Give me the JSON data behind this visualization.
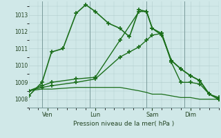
{
  "background_color": "#d0e8e8",
  "grid_color": "#b0cccc",
  "line_color": "#1a6e1a",
  "xlabel": "Pression niveau de la mer( hPa )",
  "ylim": [
    1007.5,
    1013.8
  ],
  "yticks": [
    1008,
    1009,
    1010,
    1011,
    1012,
    1013
  ],
  "xlim": [
    0.0,
    10.0
  ],
  "day_ticks": [
    1.0,
    3.5,
    6.5,
    8.5
  ],
  "day_labels": [
    "Ven",
    "Lun",
    "Sam",
    "Dim"
  ],
  "day_lines": [
    0.7,
    3.2,
    6.2,
    8.2
  ],
  "series": [
    {
      "x": [
        0.0,
        0.7,
        1.2,
        1.8,
        2.5,
        3.0,
        3.5,
        4.2,
        4.8,
        5.3,
        5.8,
        6.2,
        6.5,
        7.0,
        7.5,
        8.0,
        8.5,
        9.0,
        9.5,
        10.0
      ],
      "y": [
        1008.2,
        1009.0,
        1010.8,
        1011.0,
        1013.1,
        1013.6,
        1013.2,
        1012.5,
        1012.2,
        1011.7,
        1013.3,
        1013.2,
        1012.2,
        1011.8,
        1010.3,
        1009.8,
        1009.4,
        1009.1,
        1008.3,
        1008.0
      ],
      "linestyle": "-",
      "linewidth": 1.2,
      "marker": "+",
      "markersize": 5
    },
    {
      "x": [
        0.0,
        0.7,
        1.2,
        2.5,
        3.5,
        4.8,
        5.8,
        6.2,
        6.5,
        7.0,
        7.5,
        8.0,
        8.5,
        9.0,
        9.5,
        10.0
      ],
      "y": [
        1008.5,
        1008.8,
        1009.0,
        1009.2,
        1009.3,
        1011.5,
        1013.2,
        1013.2,
        1012.2,
        1011.9,
        1010.3,
        1009.8,
        1009.4,
        1009.1,
        1008.3,
        1008.1
      ],
      "linestyle": "-",
      "linewidth": 1.0,
      "marker": "+",
      "markersize": 4
    },
    {
      "x": [
        0.0,
        0.7,
        1.2,
        2.5,
        3.5,
        4.8,
        5.3,
        5.8,
        6.2,
        6.5,
        7.0,
        7.5,
        8.0,
        8.5,
        9.0,
        9.5,
        10.0
      ],
      "y": [
        1008.5,
        1008.7,
        1008.8,
        1009.0,
        1009.2,
        1010.5,
        1010.8,
        1011.1,
        1011.5,
        1011.8,
        1011.9,
        1010.2,
        1009.0,
        1009.0,
        1008.9,
        1008.3,
        1008.0
      ],
      "linestyle": "-",
      "linewidth": 1.0,
      "marker": "+",
      "markersize": 4
    },
    {
      "x": [
        0.0,
        0.7,
        1.2,
        2.5,
        3.5,
        4.8,
        5.3,
        5.8,
        6.2,
        6.5,
        7.0,
        7.5,
        8.0,
        8.5,
        9.0,
        9.5,
        10.0
      ],
      "y": [
        1008.5,
        1008.6,
        1008.6,
        1008.7,
        1008.7,
        1008.7,
        1008.6,
        1008.5,
        1008.4,
        1008.3,
        1008.3,
        1008.2,
        1008.1,
        1008.1,
        1008.0,
        1008.0,
        1008.0
      ],
      "linestyle": "-",
      "linewidth": 0.9,
      "marker": null,
      "markersize": 0
    }
  ]
}
